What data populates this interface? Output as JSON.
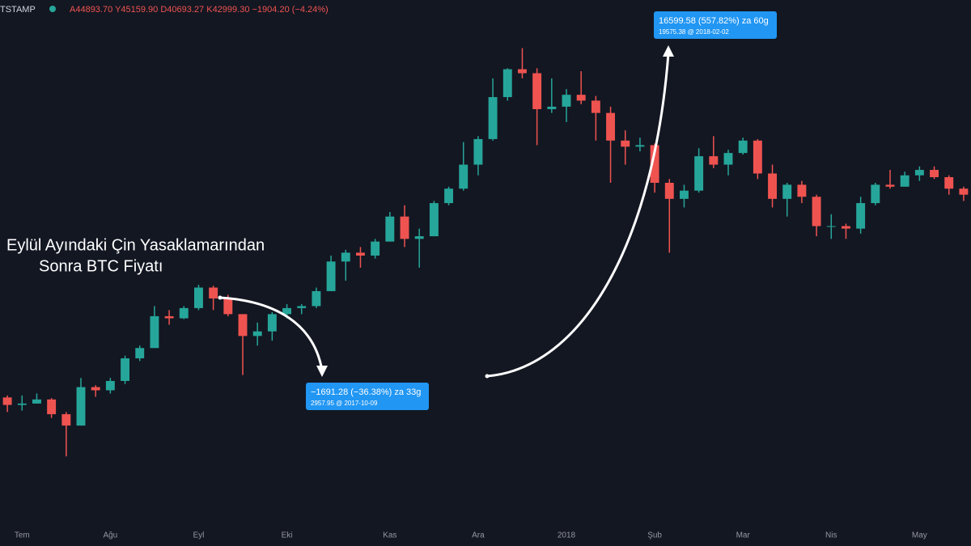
{
  "header": {
    "symbol": "TSTAMP",
    "ohlc": "A44893.70 Y45159.90 D40693.27 K42999.30 −1904.20 (−4.24%)"
  },
  "chart_data": {
    "type": "candlestick",
    "log_scale": true,
    "ylim": [
      1630,
      26000
    ],
    "up_color": "#26a69a",
    "down_color": "#ef5350",
    "categories": [
      null,
      "Tem",
      null,
      null,
      null,
      null,
      null,
      "Ağu",
      null,
      null,
      null,
      null,
      null,
      "Eyl",
      null,
      null,
      null,
      null,
      null,
      "Eki",
      null,
      null,
      null,
      null,
      null,
      null,
      "Kas",
      null,
      null,
      null,
      null,
      null,
      "Ara",
      null,
      null,
      null,
      null,
      null,
      "2018",
      null,
      null,
      null,
      null,
      null,
      "Şub",
      null,
      null,
      null,
      null,
      null,
      "Mar",
      null,
      null,
      null,
      null,
      null,
      "Nis",
      null,
      null,
      null,
      null,
      null,
      "May",
      null,
      null,
      null
    ],
    "open": [
      2590,
      2480,
      2500,
      2560,
      2350,
      2200,
      2750,
      2700,
      2850,
      3250,
      3450,
      4150,
      4100,
      4350,
      4900,
      4600,
      4200,
      3700,
      3800,
      4200,
      4350,
      4400,
      4800,
      5700,
      6000,
      5900,
      6400,
      7400,
      6500,
      6600,
      8000,
      8700,
      10000,
      11600,
      14800,
      17400,
      17000,
      13800,
      14000,
      15000,
      14500,
      13500,
      11500,
      11100,
      11200,
      9000,
      8200,
      8600,
      10500,
      10000,
      10700,
      11500,
      9500,
      8200,
      8900,
      8300,
      7000,
      7000,
      6900,
      8000,
      8900,
      8800,
      9400,
      9700,
      9300,
      8700
    ],
    "high": [
      2620,
      2620,
      2650,
      2580,
      2380,
      2900,
      2780,
      2900,
      3300,
      3500,
      4400,
      4300,
      4400,
      4980,
      4950,
      4700,
      4200,
      4000,
      4250,
      4450,
      4450,
      4900,
      5900,
      6100,
      6200,
      6500,
      7600,
      7900,
      6900,
      8100,
      8800,
      11400,
      11800,
      16500,
      17500,
      19666,
      17500,
      16500,
      15500,
      17200,
      14900,
      14000,
      12200,
      11700,
      11300,
      9200,
      8900,
      11000,
      11800,
      10900,
      11700,
      11600,
      10000,
      9000,
      9100,
      8400,
      7500,
      7100,
      8300,
      9000,
      9700,
      9600,
      9900,
      9900,
      9400,
      8800
    ],
    "low": [
      2380,
      2400,
      2500,
      2300,
      1840,
      2200,
      2600,
      2650,
      2800,
      3200,
      3450,
      3950,
      4080,
      4300,
      4300,
      4150,
      2950,
      3500,
      3600,
      4100,
      4200,
      4350,
      4800,
      5100,
      5500,
      5800,
      6400,
      6200,
      5500,
      6600,
      7900,
      8600,
      9400,
      11500,
      14500,
      16500,
      11200,
      13500,
      12800,
      14200,
      11500,
      9000,
      10000,
      10800,
      8500,
      6000,
      7800,
      8500,
      9800,
      9400,
      10600,
      9200,
      7800,
      7400,
      8000,
      6600,
      6500,
      6500,
      6700,
      7900,
      8700,
      8800,
      9100,
      9200,
      8400,
      8100
    ],
    "close": [
      2480,
      2500,
      2560,
      2350,
      2200,
      2750,
      2700,
      2850,
      3250,
      3450,
      4150,
      4100,
      4350,
      4900,
      4600,
      4200,
      3700,
      3800,
      4200,
      4350,
      4400,
      4800,
      5700,
      6000,
      5900,
      6400,
      7400,
      6500,
      6600,
      8000,
      8700,
      10000,
      11600,
      14800,
      17400,
      17000,
      13800,
      14000,
      15000,
      14500,
      13500,
      11500,
      11100,
      11200,
      9000,
      8200,
      8600,
      10500,
      10000,
      10700,
      11500,
      9500,
      8200,
      8900,
      8300,
      7000,
      7000,
      6900,
      8000,
      8900,
      8800,
      9400,
      9700,
      9300,
      8700,
      8400
    ],
    "annotations": {
      "title_line1": "Eylül Ayındaki Çin Yasaklamarından",
      "title_line2": "Sonra BTC Fiyatı",
      "drop_label": "−1691.28 (−36.38%) za 33g",
      "drop_sub": "2957.95 @ 2017-10-09",
      "rise_label": "16599.58 (557.82%) za 60g",
      "rise_sub": "19575.38 @ 2018-02-02"
    }
  }
}
